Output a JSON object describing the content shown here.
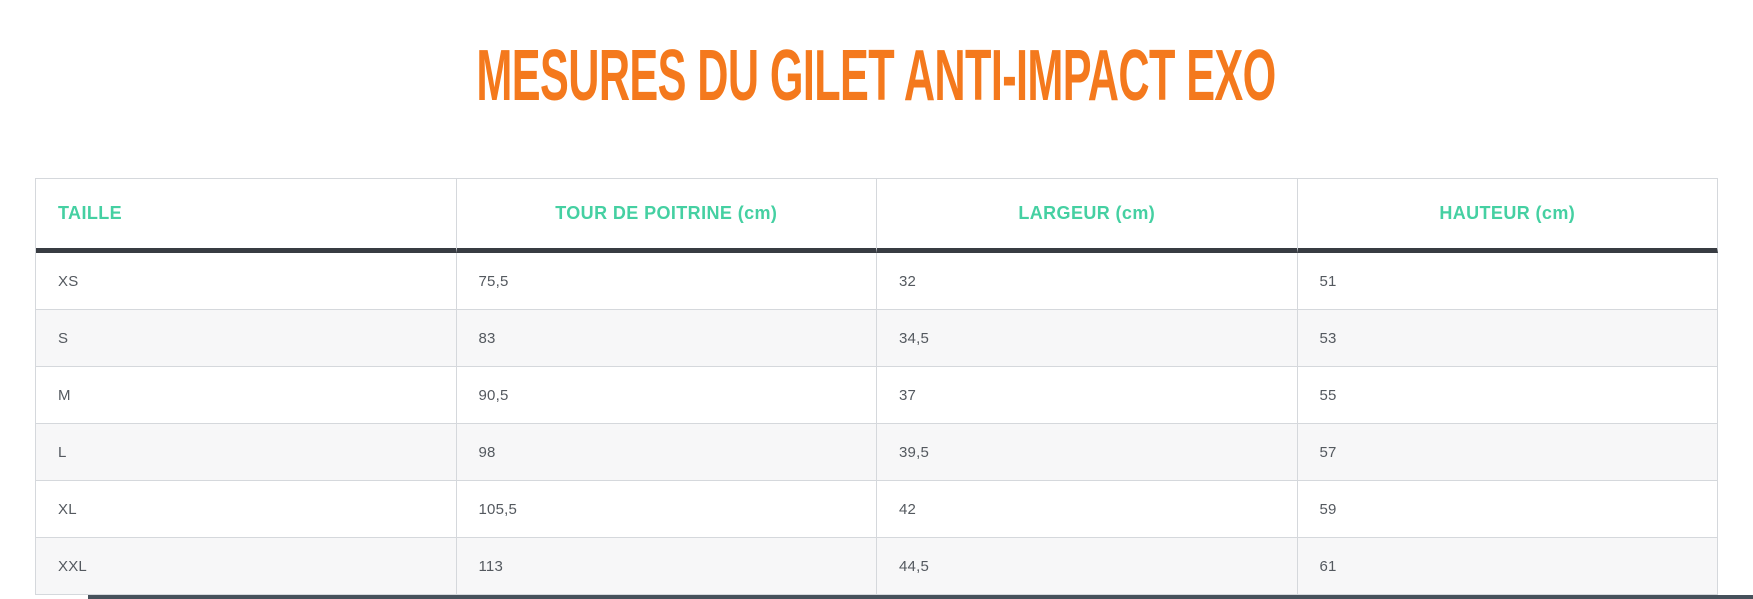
{
  "page": {
    "title": "MESURES DU GILET ANTI-IMPACT EXO"
  },
  "colors": {
    "title_orange": "#F4791D",
    "header_teal": "#45D0A2",
    "body_text_gray": "#54595F",
    "grid_line": "#D5D8DC",
    "header_rule_dark": "#383C42",
    "stripe_gray": "#F7F7F8",
    "bottom_bar_dark": "#46515B"
  },
  "table": {
    "columns": [
      {
        "label": "TAILLE"
      },
      {
        "label": "TOUR DE POITRINE (cm)"
      },
      {
        "label": "LARGEUR (cm)"
      },
      {
        "label": "HAUTEUR (cm)"
      }
    ],
    "rows": [
      {
        "taille": "XS",
        "tour_de_poitrine": "75,5",
        "largeur": "32",
        "hauteur": "51"
      },
      {
        "taille": "S",
        "tour_de_poitrine": "83",
        "largeur": "34,5",
        "hauteur": "53"
      },
      {
        "taille": "M",
        "tour_de_poitrine": "90,5",
        "largeur": "37",
        "hauteur": "55"
      },
      {
        "taille": "L",
        "tour_de_poitrine": "98",
        "largeur": "39,5",
        "hauteur": "57"
      },
      {
        "taille": "XL",
        "tour_de_poitrine": "105,5",
        "largeur": "42",
        "hauteur": "59"
      },
      {
        "taille": "XXL",
        "tour_de_poitrine": "113",
        "largeur": "44,5",
        "hauteur": "61"
      }
    ]
  },
  "chart_data": {
    "type": "table",
    "title": "MESURES DU GILET ANTI-IMPACT EXO",
    "columns": [
      "TAILLE",
      "TOUR DE POITRINE (cm)",
      "LARGEUR (cm)",
      "HAUTEUR (cm)"
    ],
    "rows": [
      [
        "XS",
        "75,5",
        "32",
        "51"
      ],
      [
        "S",
        "83",
        "34,5",
        "53"
      ],
      [
        "M",
        "90,5",
        "37",
        "55"
      ],
      [
        "L",
        "98",
        "39,5",
        "57"
      ],
      [
        "XL",
        "105,5",
        "42",
        "59"
      ],
      [
        "XXL",
        "113",
        "44,5",
        "61"
      ]
    ]
  }
}
